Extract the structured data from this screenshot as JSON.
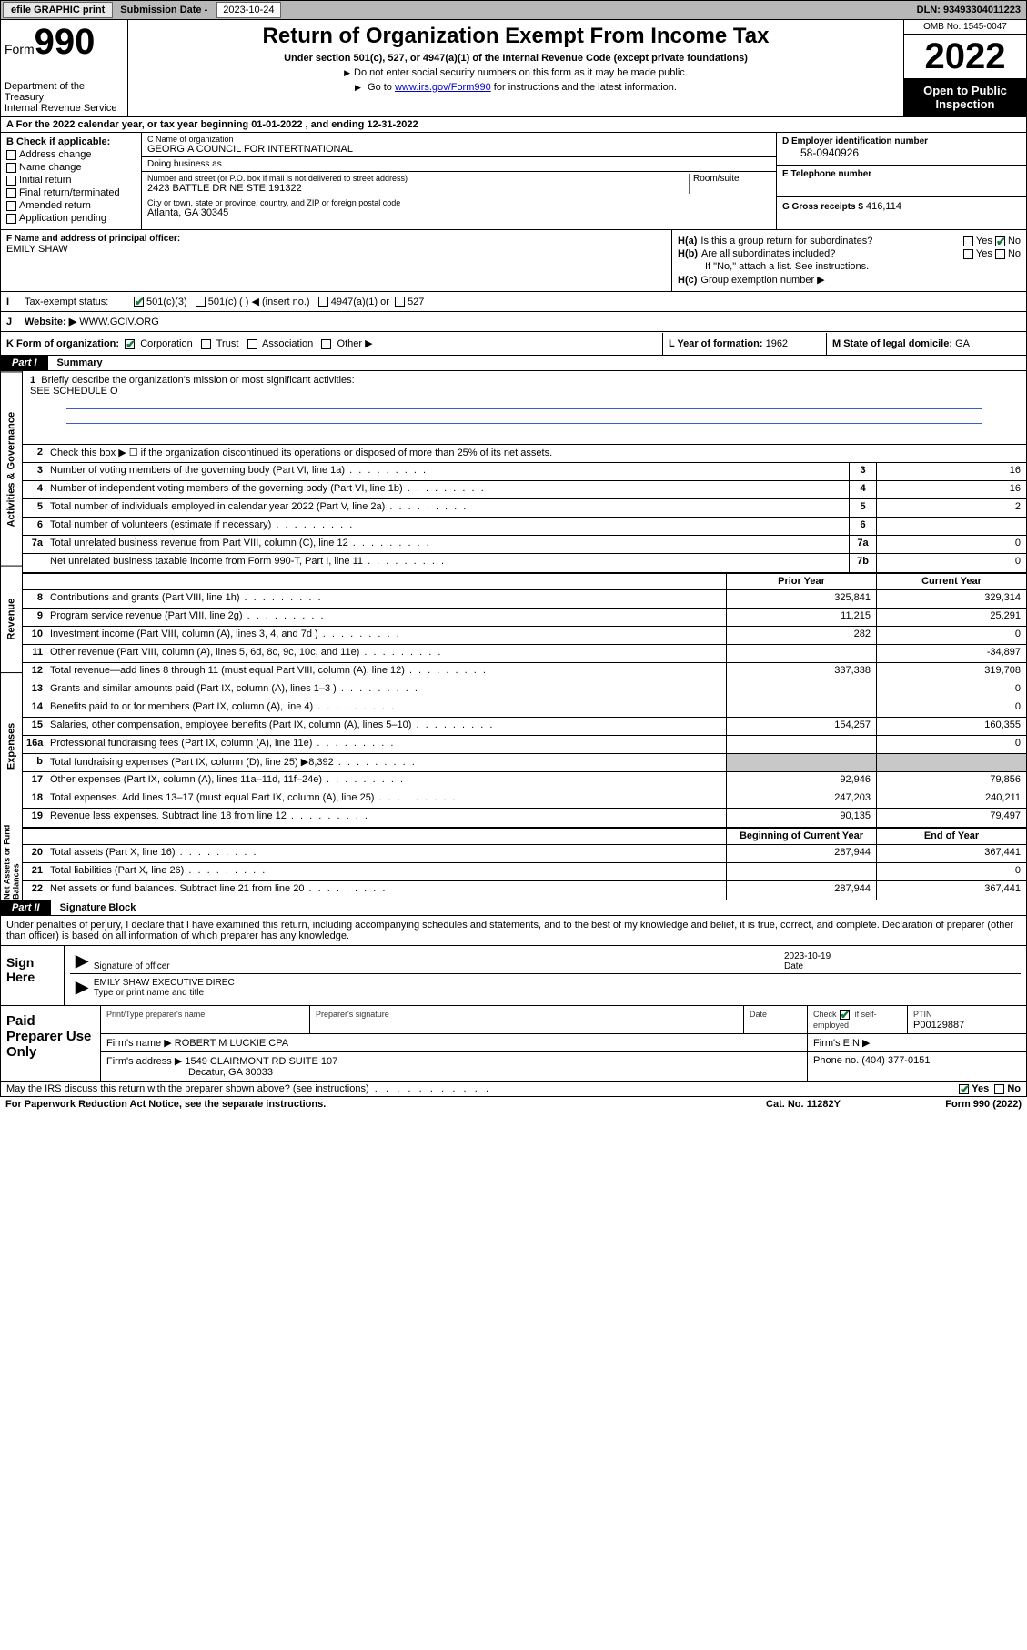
{
  "topbar": {
    "efile": "efile GRAPHIC print",
    "sub_label": "Submission Date - ",
    "sub_date": "2023-10-24",
    "dln": "DLN: 93493304011223"
  },
  "header": {
    "form_word": "Form",
    "form_num": "990",
    "dept": "Department of the Treasury\nInternal Revenue Service",
    "title": "Return of Organization Exempt From Income Tax",
    "sub1": "Under section 501(c), 527, or 4947(a)(1) of the Internal Revenue Code (except private foundations)",
    "sub2": "Do not enter social security numbers on this form as it may be made public.",
    "sub3_pre": "Go to ",
    "sub3_link": "www.irs.gov/Form990",
    "sub3_post": " for instructions and the latest information.",
    "omb": "OMB No. 1545-0047",
    "year": "2022",
    "open": "Open to Public Inspection"
  },
  "row_a": "A For the 2022 calendar year, or tax year beginning 01-01-2022    , and ending 12-31-2022",
  "b": {
    "hdr": "B Check if applicable:",
    "items": [
      "Address change",
      "Name change",
      "Initial return",
      "Final return/terminated",
      "Amended return",
      "Application pending"
    ]
  },
  "c": {
    "name_lbl": "C Name of organization",
    "name": "GEORGIA COUNCIL FOR INTERTNATIONAL",
    "dba_lbl": "Doing business as",
    "dba": "",
    "addr_lbl": "Number and street (or P.O. box if mail is not delivered to street address)",
    "room_lbl": "Room/suite",
    "addr": "2423 BATTLE DR NE STE 191322",
    "city_lbl": "City or town, state or province, country, and ZIP or foreign postal code",
    "city": "Atlanta, GA  30345"
  },
  "d": {
    "lbl": "D Employer identification number",
    "val": "58-0940926"
  },
  "e": {
    "lbl": "E Telephone number",
    "val": ""
  },
  "g": {
    "lbl": "G Gross receipts $",
    "val": "416,114"
  },
  "f": {
    "lbl": "F  Name and address of principal officer:",
    "val": "EMILY SHAW"
  },
  "h": {
    "a_lbl": "H(a)",
    "a_txt": "Is this a group return for subordinates?",
    "b_lbl": "H(b)",
    "b_txt": "Are all subordinates included?",
    "b_note": "If \"No,\" attach a list. See instructions.",
    "c_lbl": "H(c)",
    "c_txt": "Group exemption number ▶",
    "yes": "Yes",
    "no": "No"
  },
  "i": {
    "lbl": "Tax-exempt status:",
    "opts": [
      "501(c)(3)",
      "501(c) (   ) ◀ (insert no.)",
      "4947(a)(1) or",
      "527"
    ]
  },
  "j": {
    "lbl": "Website: ▶",
    "val": "WWW.GCIV.ORG"
  },
  "k": {
    "lbl": "K Form of organization:",
    "opts": [
      "Corporation",
      "Trust",
      "Association",
      "Other ▶"
    ]
  },
  "l": {
    "lbl": "L Year of formation:",
    "val": "1962"
  },
  "m": {
    "lbl": "M State of legal domicile:",
    "val": "GA"
  },
  "part1": {
    "hdr": "Part I",
    "title": "Summary"
  },
  "mission": {
    "num": "1",
    "lbl": "Briefly describe the organization's mission or most significant activities:",
    "val": "SEE SCHEDULE O"
  },
  "line2": "Check this box ▶ ☐  if the organization discontinued its operations or disposed of more than 25% of its net assets.",
  "section_labels": {
    "gov": "Activities & Governance",
    "rev": "Revenue",
    "exp": "Expenses",
    "net": "Net Assets or Fund Balances"
  },
  "col_hdrs": {
    "prior": "Prior Year",
    "current": "Current Year",
    "begin": "Beginning of Current Year",
    "end": "End of Year"
  },
  "gov_rows": [
    {
      "n": "3",
      "d": "Number of voting members of the governing body (Part VI, line 1a)",
      "c": "3",
      "v": "16"
    },
    {
      "n": "4",
      "d": "Number of independent voting members of the governing body (Part VI, line 1b)",
      "c": "4",
      "v": "16"
    },
    {
      "n": "5",
      "d": "Total number of individuals employed in calendar year 2022 (Part V, line 2a)",
      "c": "5",
      "v": "2"
    },
    {
      "n": "6",
      "d": "Total number of volunteers (estimate if necessary)",
      "c": "6",
      "v": ""
    },
    {
      "n": "7a",
      "d": "Total unrelated business revenue from Part VIII, column (C), line 12",
      "c": "7a",
      "v": "0"
    },
    {
      "n": "",
      "d": "Net unrelated business taxable income from Form 990-T, Part I, line 11",
      "c": "7b",
      "v": "0"
    }
  ],
  "rev_rows": [
    {
      "n": "8",
      "d": "Contributions and grants (Part VIII, line 1h)",
      "p": "325,841",
      "c": "329,314"
    },
    {
      "n": "9",
      "d": "Program service revenue (Part VIII, line 2g)",
      "p": "11,215",
      "c": "25,291"
    },
    {
      "n": "10",
      "d": "Investment income (Part VIII, column (A), lines 3, 4, and 7d )",
      "p": "282",
      "c": "0"
    },
    {
      "n": "11",
      "d": "Other revenue (Part VIII, column (A), lines 5, 6d, 8c, 9c, 10c, and 11e)",
      "p": "",
      "c": "-34,897"
    },
    {
      "n": "12",
      "d": "Total revenue—add lines 8 through 11 (must equal Part VIII, column (A), line 12)",
      "p": "337,338",
      "c": "319,708"
    }
  ],
  "exp_rows": [
    {
      "n": "13",
      "d": "Grants and similar amounts paid (Part IX, column (A), lines 1–3 )",
      "p": "",
      "c": "0"
    },
    {
      "n": "14",
      "d": "Benefits paid to or for members (Part IX, column (A), line 4)",
      "p": "",
      "c": "0"
    },
    {
      "n": "15",
      "d": "Salaries, other compensation, employee benefits (Part IX, column (A), lines 5–10)",
      "p": "154,257",
      "c": "160,355"
    },
    {
      "n": "16a",
      "d": "Professional fundraising fees (Part IX, column (A), line 11e)",
      "p": "",
      "c": "0"
    },
    {
      "n": "b",
      "d": "Total fundraising expenses (Part IX, column (D), line 25) ▶8,392",
      "p": "SHADE",
      "c": "SHADE"
    },
    {
      "n": "17",
      "d": "Other expenses (Part IX, column (A), lines 11a–11d, 11f–24e)",
      "p": "92,946",
      "c": "79,856"
    },
    {
      "n": "18",
      "d": "Total expenses. Add lines 13–17 (must equal Part IX, column (A), line 25)",
      "p": "247,203",
      "c": "240,211"
    },
    {
      "n": "19",
      "d": "Revenue less expenses. Subtract line 18 from line 12",
      "p": "90,135",
      "c": "79,497"
    }
  ],
  "net_rows": [
    {
      "n": "20",
      "d": "Total assets (Part X, line 16)",
      "p": "287,944",
      "c": "367,441"
    },
    {
      "n": "21",
      "d": "Total liabilities (Part X, line 26)",
      "p": "",
      "c": "0"
    },
    {
      "n": "22",
      "d": "Net assets or fund balances. Subtract line 21 from line 20",
      "p": "287,944",
      "c": "367,441"
    }
  ],
  "part2": {
    "hdr": "Part II",
    "title": "Signature Block"
  },
  "sig_intro": "Under penalties of perjury, I declare that I have examined this return, including accompanying schedules and statements, and to the best of my knowledge and belief, it is true, correct, and complete. Declaration of preparer (other than officer) is based on all information of which preparer has any knowledge.",
  "sign": {
    "here": "Sign Here",
    "date": "2023-10-19",
    "sig_of": "Signature of officer",
    "date_lbl": "Date",
    "name": "EMILY SHAW  EXECUTIVE DIREC",
    "name_lbl": "Type or print name and title"
  },
  "prep": {
    "left": "Paid Preparer Use Only",
    "r1": {
      "c1": "Print/Type preparer's name",
      "c2": "Preparer's signature",
      "c3": "Date",
      "c4_lbl": "Check",
      "c4_txt": "if self-employed",
      "c5_lbl": "PTIN",
      "c5_val": "P00129887"
    },
    "r2": {
      "lbl": "Firm's name    ▶",
      "val": "ROBERT M LUCKIE CPA",
      "ein": "Firm's EIN ▶"
    },
    "r3": {
      "lbl": "Firm's address ▶",
      "val": "1549 CLAIRMONT RD SUITE 107",
      "val2": "Decatur, GA  30033",
      "ph_lbl": "Phone no.",
      "ph": "(404) 377-0151"
    }
  },
  "irs_discuss": "May the IRS discuss this return with the preparer shown above? (see instructions)",
  "footer": {
    "pra": "For Paperwork Reduction Act Notice, see the separate instructions.",
    "cat": "Cat. No. 11282Y",
    "form": "Form 990 (2022)"
  }
}
